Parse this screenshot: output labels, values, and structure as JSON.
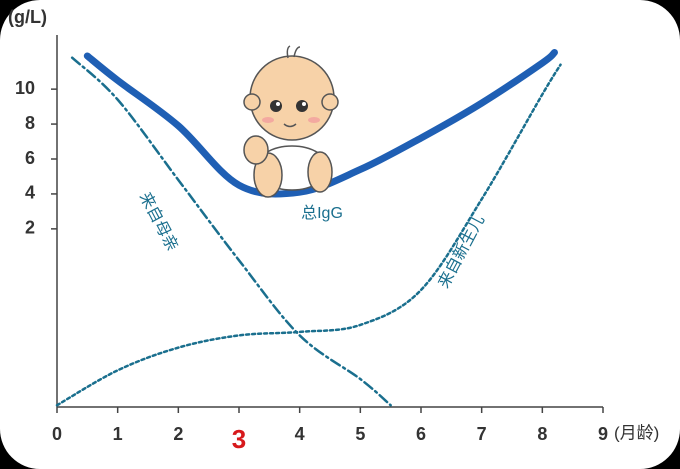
{
  "chart_data": {
    "type": "line",
    "y_label": "(g/L)",
    "x_label": "(月龄)",
    "xlim": [
      0,
      9
    ],
    "ylim": [
      -8.2,
      13.1
    ],
    "xticks": [
      0,
      1,
      2,
      3,
      4,
      5,
      6,
      7,
      8,
      9
    ],
    "yticks": [
      2,
      4,
      6,
      8,
      10
    ],
    "xtick_highlight": {
      "value": 3,
      "color": "#d7191c"
    },
    "series": [
      {
        "name": "总IgG",
        "color": "#1f5fb4",
        "dash": "solid",
        "x": [
          0.5,
          1,
          2,
          3,
          4,
          5,
          6,
          7,
          8,
          8.2
        ],
        "values": [
          11.9,
          10.5,
          7.9,
          4.5,
          4.1,
          5.4,
          7.2,
          9.2,
          11.5,
          12.1
        ]
      },
      {
        "name": "来自母亲",
        "color": "#1a6f8e",
        "dash": "dashdot",
        "x": [
          0.25,
          1,
          2,
          3,
          4,
          5,
          5.5
        ],
        "values": [
          11.8,
          9.4,
          4.8,
          0.2,
          -4.1,
          -6.6,
          -8.1
        ]
      },
      {
        "name": "来自新生儿",
        "color": "#1a6f8e",
        "dash": "dotted",
        "x": [
          0,
          1,
          2,
          3,
          4,
          5,
          6,
          7,
          8,
          8.3
        ],
        "values": [
          -8.1,
          -6.1,
          -4.8,
          -4.1,
          -3.9,
          -3.5,
          -1.5,
          3.7,
          9.7,
          11.4
        ]
      }
    ]
  }
}
